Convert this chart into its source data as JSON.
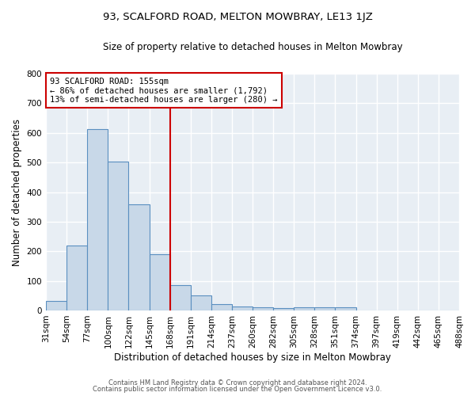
{
  "title": "93, SCALFORD ROAD, MELTON MOWBRAY, LE13 1JZ",
  "subtitle": "Size of property relative to detached houses in Melton Mowbray",
  "xlabel": "Distribution of detached houses by size in Melton Mowbray",
  "ylabel": "Number of detached properties",
  "bin_labels": [
    "31sqm",
    "54sqm",
    "77sqm",
    "100sqm",
    "122sqm",
    "145sqm",
    "168sqm",
    "191sqm",
    "214sqm",
    "237sqm",
    "260sqm",
    "282sqm",
    "305sqm",
    "328sqm",
    "351sqm",
    "374sqm",
    "397sqm",
    "419sqm",
    "442sqm",
    "465sqm",
    "488sqm"
  ],
  "bar_values": [
    32,
    220,
    612,
    503,
    358,
    191,
    85,
    52,
    21,
    14,
    10,
    9,
    10,
    10,
    10,
    0,
    0,
    0,
    0,
    0,
    0
  ],
  "bar_color": "#c8d8e8",
  "bar_edge_color": "#5a8fc0",
  "background_color": "#e8eef4",
  "grid_color": "#ffffff",
  "fig_background": "#ffffff",
  "ylim": [
    0,
    800
  ],
  "yticks": [
    0,
    100,
    200,
    300,
    400,
    500,
    600,
    700,
    800
  ],
  "subject_bin_index": 6,
  "annotation_text_line1": "93 SCALFORD ROAD: 155sqm",
  "annotation_text_line2": "← 86% of detached houses are smaller (1,792)",
  "annotation_text_line3": "13% of semi-detached houses are larger (280) →",
  "annotation_box_color": "#ffffff",
  "annotation_border_color": "#cc0000",
  "footer_line1": "Contains HM Land Registry data © Crown copyright and database right 2024.",
  "footer_line2": "Contains public sector information licensed under the Open Government Licence v3.0."
}
